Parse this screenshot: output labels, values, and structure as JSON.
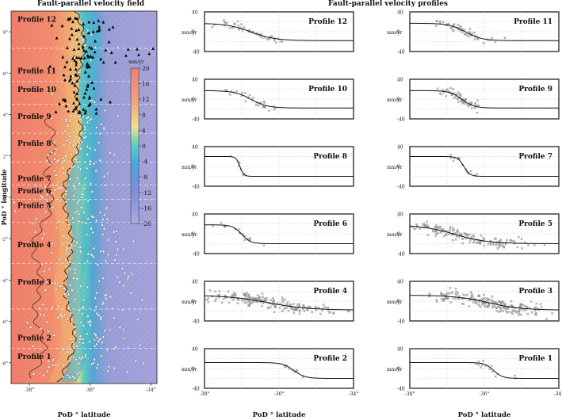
{
  "left_panel": {
    "title": "Fault-parallel velocity field",
    "xlabel": "PoD ° latitude",
    "ylabel": "PoD ° longitude",
    "x_ticks": [
      "-38°",
      "-36°",
      "-34°"
    ],
    "y_ticks": [
      "8°",
      "6°",
      "4°",
      "2°",
      "0°",
      "-2°",
      "-4°",
      "-6°",
      "-8°"
    ],
    "colorbar": {
      "unit": "mm/yr",
      "ticks": [
        "20",
        "16",
        "12",
        "8",
        "4",
        "0",
        "-4",
        "-8",
        "-12",
        "-16",
        "-20"
      ],
      "range": [
        -20,
        20
      ]
    },
    "profile_labels": [
      {
        "text": "Profile 12",
        "lat": 8.6
      },
      {
        "text": "Profile 11",
        "lat": 6.1
      },
      {
        "text": "Profile 10",
        "lat": 5.2
      },
      {
        "text": "Profile 9",
        "lat": 3.9
      },
      {
        "text": "Profile 8",
        "lat": 2.6
      },
      {
        "text": "Profile 7",
        "lat": 0.9
      },
      {
        "text": "Profile 6",
        "lat": 0.3
      },
      {
        "text": "Profile 5",
        "lat": -0.4
      },
      {
        "text": "Profile 4",
        "lat": -2.3
      },
      {
        "text": "Profile 3",
        "lat": -4.1
      },
      {
        "text": "Profile 2",
        "lat": -6.8
      },
      {
        "text": "Profile 1",
        "lat": -7.7
      }
    ]
  },
  "right_panel": {
    "title": "Fault-parallel velocity profiles",
    "xlabel": "PoD ° latitude",
    "x_ticks": [
      "-38°",
      "-36°",
      "-34°"
    ],
    "y_unit": "mm/yr",
    "y_ticks": [
      "40",
      "0",
      "-40"
    ]
  },
  "chart_data": {
    "type": "line",
    "xlim": [
      -38,
      -34
    ],
    "ylim": [
      -40,
      40
    ],
    "profiles": [
      {
        "name": "Profile 12",
        "col": 0,
        "row": 0,
        "left": 17,
        "right": -18,
        "center": -36.75,
        "width": 0.32,
        "scatter_n": 45,
        "scatter_spread": 1.0,
        "noise": 4
      },
      {
        "name": "Profile 11",
        "col": 1,
        "row": 0,
        "left": 17,
        "right": -18,
        "center": -36.5,
        "width": 0.22,
        "scatter_n": 50,
        "scatter_spread": 0.9,
        "noise": 4
      },
      {
        "name": "Profile 10",
        "col": 0,
        "row": 1,
        "left": 17,
        "right": -18,
        "center": -36.75,
        "width": 0.22,
        "scatter_n": 30,
        "scatter_spread": 0.7,
        "noise": 4
      },
      {
        "name": "Profile 9",
        "col": 1,
        "row": 1,
        "left": 17,
        "right": -18,
        "center": -36.6,
        "width": 0.16,
        "scatter_n": 60,
        "scatter_spread": 0.6,
        "noise": 5
      },
      {
        "name": "Profile 8",
        "col": 0,
        "row": 2,
        "left": 20,
        "right": -20,
        "center": -37.05,
        "width": 0.05,
        "scatter_n": 8,
        "scatter_spread": 0.3,
        "noise": 3
      },
      {
        "name": "Profile 7",
        "col": 1,
        "row": 2,
        "left": 20,
        "right": -20,
        "center": -36.55,
        "width": 0.08,
        "scatter_n": 14,
        "scatter_spread": 0.5,
        "noise": 3
      },
      {
        "name": "Profile 6",
        "col": 0,
        "row": 3,
        "left": 18,
        "right": -20,
        "center": -37.0,
        "width": 0.12,
        "scatter_n": 18,
        "scatter_spread": 0.6,
        "noise": 4
      },
      {
        "name": "Profile 5",
        "col": 1,
        "row": 3,
        "left": 18,
        "right": -20,
        "center": -36.8,
        "width": 0.45,
        "scatter_n": 170,
        "scatter_spread": 2.0,
        "noise": 6
      },
      {
        "name": "Profile 4",
        "col": 0,
        "row": 4,
        "left": 12,
        "right": -18,
        "center": -36.3,
        "width": 0.55,
        "scatter_n": 190,
        "scatter_spread": 1.8,
        "noise": 6
      },
      {
        "name": "Profile 3",
        "col": 1,
        "row": 4,
        "left": 12,
        "right": -18,
        "center": -35.9,
        "width": 0.45,
        "scatter_n": 200,
        "scatter_spread": 1.6,
        "noise": 7
      },
      {
        "name": "Profile 2",
        "col": 0,
        "row": 5,
        "left": 12,
        "right": -20,
        "center": -35.6,
        "width": 0.15,
        "scatter_n": 10,
        "scatter_spread": 0.6,
        "noise": 4
      },
      {
        "name": "Profile 1",
        "col": 1,
        "row": 5,
        "left": 12,
        "right": -20,
        "center": -35.75,
        "width": 0.12,
        "scatter_n": 14,
        "scatter_spread": 0.6,
        "noise": 4
      }
    ]
  },
  "colors": {
    "curve": "#111111",
    "scatter": "#909090",
    "frame": "#333333",
    "grid": "#bdbdbd",
    "map_water": "#9c9fd6",
    "map_land_warm": "#f2846e",
    "fault": "#111111"
  }
}
